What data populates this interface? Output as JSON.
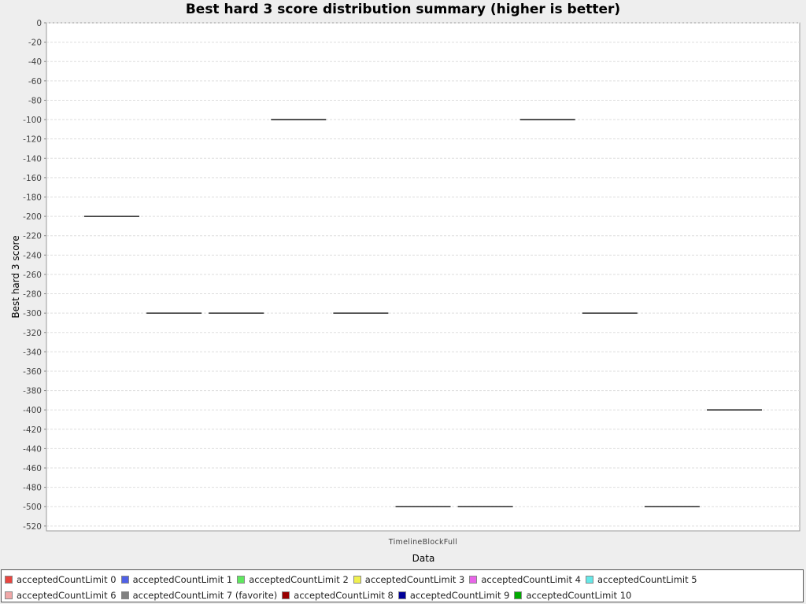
{
  "chart_data": {
    "type": "box",
    "title": "Best hard 3 score distribution summary (higher is better)",
    "xlabel": "Data",
    "ylabel": "Best hard 3 score",
    "categories": [
      "TimelineBlockFull"
    ],
    "ylim": [
      -525,
      0
    ],
    "y_ticks": [
      "0",
      "-20",
      "-40",
      "-60",
      "-80",
      "-100",
      "-120",
      "-140",
      "-160",
      "-180",
      "-200",
      "-220",
      "-240",
      "-260",
      "-280",
      "-300",
      "-320",
      "-340",
      "-360",
      "-380",
      "-400",
      "-420",
      "-440",
      "-460",
      "-480",
      "-500",
      "-520"
    ],
    "grid": true,
    "legend_position": "bottom",
    "series": [
      {
        "name": "acceptedCountLimit 0",
        "color": "#e8453f",
        "values": [
          -200
        ]
      },
      {
        "name": "acceptedCountLimit 1",
        "color": "#5061e6",
        "values": [
          -300
        ]
      },
      {
        "name": "acceptedCountLimit 2",
        "color": "#5fe85f",
        "values": [
          -300
        ]
      },
      {
        "name": "acceptedCountLimit 3",
        "color": "#f0f050",
        "values": [
          -100
        ]
      },
      {
        "name": "acceptedCountLimit 4",
        "color": "#e865e8",
        "values": [
          -300
        ]
      },
      {
        "name": "acceptedCountLimit 5",
        "color": "#65e8e8",
        "values": [
          -500
        ]
      },
      {
        "name": "acceptedCountLimit 6",
        "color": "#f0a8a8",
        "values": [
          -500
        ]
      },
      {
        "name": "acceptedCountLimit 7 (favorite)",
        "color": "#808080",
        "values": [
          -100
        ]
      },
      {
        "name": "acceptedCountLimit 8",
        "color": "#990000",
        "values": [
          -300
        ]
      },
      {
        "name": "acceptedCountLimit 9",
        "color": "#000099",
        "values": [
          -500
        ]
      },
      {
        "name": "acceptedCountLimit 10",
        "color": "#00aa00",
        "values": [
          -400
        ]
      }
    ]
  }
}
